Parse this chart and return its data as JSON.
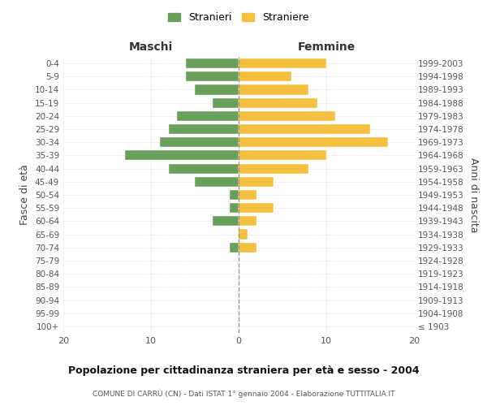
{
  "age_groups": [
    "100+",
    "95-99",
    "90-94",
    "85-89",
    "80-84",
    "75-79",
    "70-74",
    "65-69",
    "60-64",
    "55-59",
    "50-54",
    "45-49",
    "40-44",
    "35-39",
    "30-34",
    "25-29",
    "20-24",
    "15-19",
    "10-14",
    "5-9",
    "0-4"
  ],
  "birth_years": [
    "≤ 1903",
    "1904-1908",
    "1909-1913",
    "1914-1918",
    "1919-1923",
    "1924-1928",
    "1929-1933",
    "1934-1938",
    "1939-1943",
    "1944-1948",
    "1949-1953",
    "1954-1958",
    "1959-1963",
    "1964-1968",
    "1969-1973",
    "1974-1978",
    "1979-1983",
    "1984-1988",
    "1989-1993",
    "1994-1998",
    "1999-2003"
  ],
  "maschi": [
    0,
    0,
    0,
    0,
    0,
    0,
    1,
    0,
    3,
    1,
    1,
    5,
    8,
    13,
    9,
    8,
    7,
    3,
    5,
    6,
    6
  ],
  "femmine": [
    0,
    0,
    0,
    0,
    0,
    0,
    2,
    1,
    2,
    4,
    2,
    4,
    8,
    10,
    17,
    15,
    11,
    9,
    8,
    6,
    10
  ],
  "maschi_color": "#6a9e5b",
  "femmine_color": "#f5c040",
  "background_color": "#ffffff",
  "grid_color": "#cccccc",
  "title": "Popolazione per cittadinanza straniera per età e sesso - 2004",
  "subtitle": "COMUNE DI CARRÙ (CN) - Dati ISTAT 1° gennaio 2004 - Elaborazione TUTTITALIA.IT",
  "ylabel_left": "Fasce di età",
  "ylabel_right": "Anni di nascita",
  "xlabel_maschi": "Maschi",
  "xlabel_femmine": "Femmine",
  "legend_stranieri": "Stranieri",
  "legend_straniere": "Straniere",
  "xlim": 20
}
